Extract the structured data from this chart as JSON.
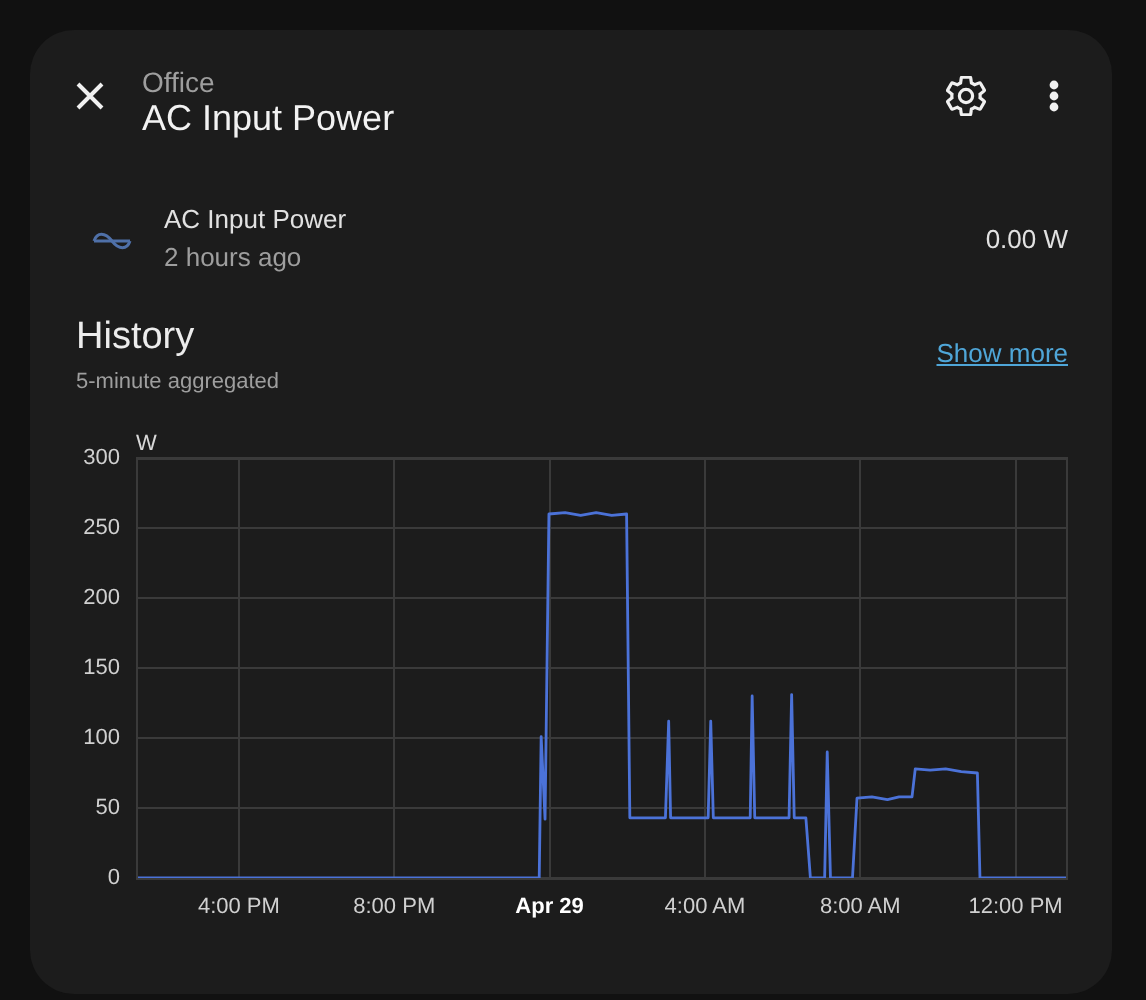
{
  "chart_data": {
    "type": "line",
    "title": "History",
    "subtitle": "5-minute aggregated",
    "ylabel": "W",
    "annotations": [
      "Office",
      "AC Input Power",
      "AC Input Power",
      "2 hours ago",
      "0.00 W",
      "Show more"
    ],
    "series": [
      {
        "color": "#4b72d8",
        "x": [
          "--04-28T13:21",
          "--04-28T23:44",
          "--04-28T23:47",
          "--04-28T23:53",
          "--04-28T23:59",
          "--04-29T00:24",
          "--04-29T00:48",
          "--04-29T01:12",
          "--04-29T01:36",
          "--04-29T01:59",
          "--04-29T02:04",
          "--04-29T02:59",
          "--04-29T03:04",
          "--04-29T03:07",
          "--04-29T04:05",
          "--04-29T04:09",
          "--04-29T04:13",
          "--04-29T05:10",
          "--04-29T05:13",
          "--04-29T05:17",
          "--04-29T06:10",
          "--04-29T06:14",
          "--04-29T06:18",
          "--04-29T06:36",
          "--04-29T06:43",
          "--04-29T07:05",
          "--04-29T07:09",
          "--04-29T07:14",
          "--04-29T07:48",
          "--04-29T07:55",
          "--04-29T08:18",
          "--04-29T08:42",
          "--04-29T09:00",
          "--04-29T09:20",
          "--04-29T09:25",
          "--04-29T09:48",
          "--04-29T10:12",
          "--04-29T10:36",
          "--04-29T11:01",
          "--04-29T11:05",
          "--04-29T13:21"
        ],
        "values": [
          0,
          0,
          101,
          42,
          260,
          261,
          259,
          261,
          259,
          260,
          43,
          43,
          112,
          43,
          43,
          112,
          43,
          43,
          130,
          43,
          43,
          131,
          43,
          43,
          0,
          0,
          90,
          0,
          0,
          57,
          58,
          56,
          58,
          58,
          78,
          77,
          78,
          76,
          75,
          0,
          0
        ]
      }
    ],
    "xlim": [
      "--04-28T13:21",
      "--04-29T13:21"
    ],
    "xticks": [
      {
        "value": "--04-28T16:00",
        "label": "4:00 PM"
      },
      {
        "value": "--04-28T20:00",
        "label": "8:00 PM"
      },
      {
        "value": "--04-29T00:00",
        "label": "Apr 29"
      },
      {
        "value": "--04-29T04:00",
        "label": "4:00 AM"
      },
      {
        "value": "--04-29T08:00",
        "label": "8:00 AM"
      },
      {
        "value": "--04-29T12:00",
        "label": "12:00 PM"
      }
    ],
    "ylim": [
      0,
      300
    ],
    "yticks": [
      0,
      50,
      100,
      150,
      200,
      250,
      300
    ],
    "grid": true,
    "legend": false,
    "marker": "none",
    "line_style": "solid"
  }
}
